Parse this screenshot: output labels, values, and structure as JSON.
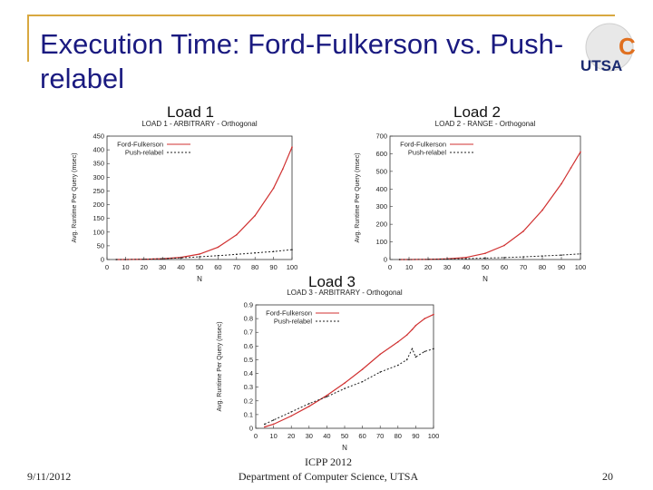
{
  "slide": {
    "title": "Execution Time: Ford-Fulkerson vs. Push-relabel",
    "logo_text": "UTSA",
    "logo_letter": "C",
    "load_labels": [
      "Load 1",
      "Load 2",
      "Load 3"
    ],
    "footer": {
      "date": "9/11/2012",
      "conference": "ICPP 2012",
      "department": "Department of Computer Science, UTSA",
      "page": "20"
    },
    "colors": {
      "title": "#1a1a80",
      "frame": "#d8a840",
      "ff_line": "#d03030",
      "pr_line": "#202020"
    }
  },
  "chart_data": [
    {
      "type": "line",
      "title": "LOAD 1 - ARBITRARY - Orthogonal",
      "xlabel": "N",
      "ylabel": "Avg. Runtime Per Query (msec)",
      "xlim": [
        0,
        100
      ],
      "ylim": [
        0,
        450
      ],
      "xticks": [
        0,
        10,
        20,
        30,
        40,
        50,
        60,
        70,
        80,
        90,
        100
      ],
      "yticks": [
        0,
        50,
        100,
        150,
        200,
        250,
        300,
        350,
        400,
        450
      ],
      "legend": "top-left",
      "series": [
        {
          "name": "Ford-Fulkerson",
          "style": "solid",
          "x": [
            5,
            10,
            20,
            30,
            40,
            50,
            60,
            70,
            80,
            90,
            95,
            100
          ],
          "y": [
            0,
            0,
            1,
            3,
            8,
            20,
            45,
            90,
            160,
            260,
            330,
            410
          ]
        },
        {
          "name": "Push-relabel",
          "style": "dashed",
          "x": [
            5,
            10,
            20,
            30,
            40,
            50,
            60,
            70,
            80,
            90,
            100
          ],
          "y": [
            0,
            0,
            1,
            3,
            6,
            10,
            14,
            19,
            24,
            29,
            36
          ]
        }
      ]
    },
    {
      "type": "line",
      "title": "LOAD 2 - RANGE - Orthogonal",
      "xlabel": "N",
      "ylabel": "Avg. Runtime Per Query (msec)",
      "xlim": [
        0,
        100
      ],
      "ylim": [
        0,
        700
      ],
      "xticks": [
        0,
        10,
        20,
        30,
        40,
        50,
        60,
        70,
        80,
        90,
        100
      ],
      "yticks": [
        0,
        100,
        200,
        300,
        400,
        500,
        600,
        700
      ],
      "legend": "top-left",
      "series": [
        {
          "name": "Ford-Fulkerson",
          "style": "solid",
          "x": [
            5,
            10,
            20,
            30,
            40,
            50,
            60,
            70,
            80,
            90,
            95,
            100
          ],
          "y": [
            0,
            0,
            1,
            4,
            12,
            35,
            80,
            160,
            280,
            430,
            520,
            610
          ]
        },
        {
          "name": "Push-relabel",
          "style": "dashed",
          "x": [
            5,
            10,
            20,
            30,
            40,
            50,
            60,
            70,
            80,
            90,
            100
          ],
          "y": [
            0,
            0,
            1,
            3,
            5,
            8,
            11,
            15,
            20,
            25,
            32
          ]
        }
      ]
    },
    {
      "type": "line",
      "title": "LOAD 3 - ARBITRARY - Orthogonal",
      "xlabel": "N",
      "ylabel": "Avg. Runtime Per Query (msec)",
      "xlim": [
        0,
        100
      ],
      "ylim": [
        0,
        0.9
      ],
      "xticks": [
        0,
        10,
        20,
        30,
        40,
        50,
        60,
        70,
        80,
        90,
        100
      ],
      "yticks": [
        0,
        0.1,
        0.2,
        0.3,
        0.4,
        0.5,
        0.6,
        0.7,
        0.8,
        0.9
      ],
      "legend": "top-left",
      "series": [
        {
          "name": "Ford-Fulkerson",
          "style": "solid",
          "x": [
            5,
            10,
            20,
            30,
            40,
            50,
            60,
            70,
            80,
            85,
            88,
            90,
            95,
            100
          ],
          "y": [
            0.01,
            0.03,
            0.09,
            0.16,
            0.24,
            0.33,
            0.43,
            0.54,
            0.63,
            0.68,
            0.72,
            0.75,
            0.8,
            0.83
          ]
        },
        {
          "name": "Push-relabel",
          "style": "dashed",
          "x": [
            5,
            10,
            20,
            30,
            40,
            50,
            60,
            70,
            80,
            85,
            88,
            90,
            95,
            100
          ],
          "y": [
            0.03,
            0.06,
            0.12,
            0.18,
            0.23,
            0.29,
            0.34,
            0.41,
            0.46,
            0.5,
            0.58,
            0.52,
            0.56,
            0.58
          ]
        }
      ]
    }
  ]
}
